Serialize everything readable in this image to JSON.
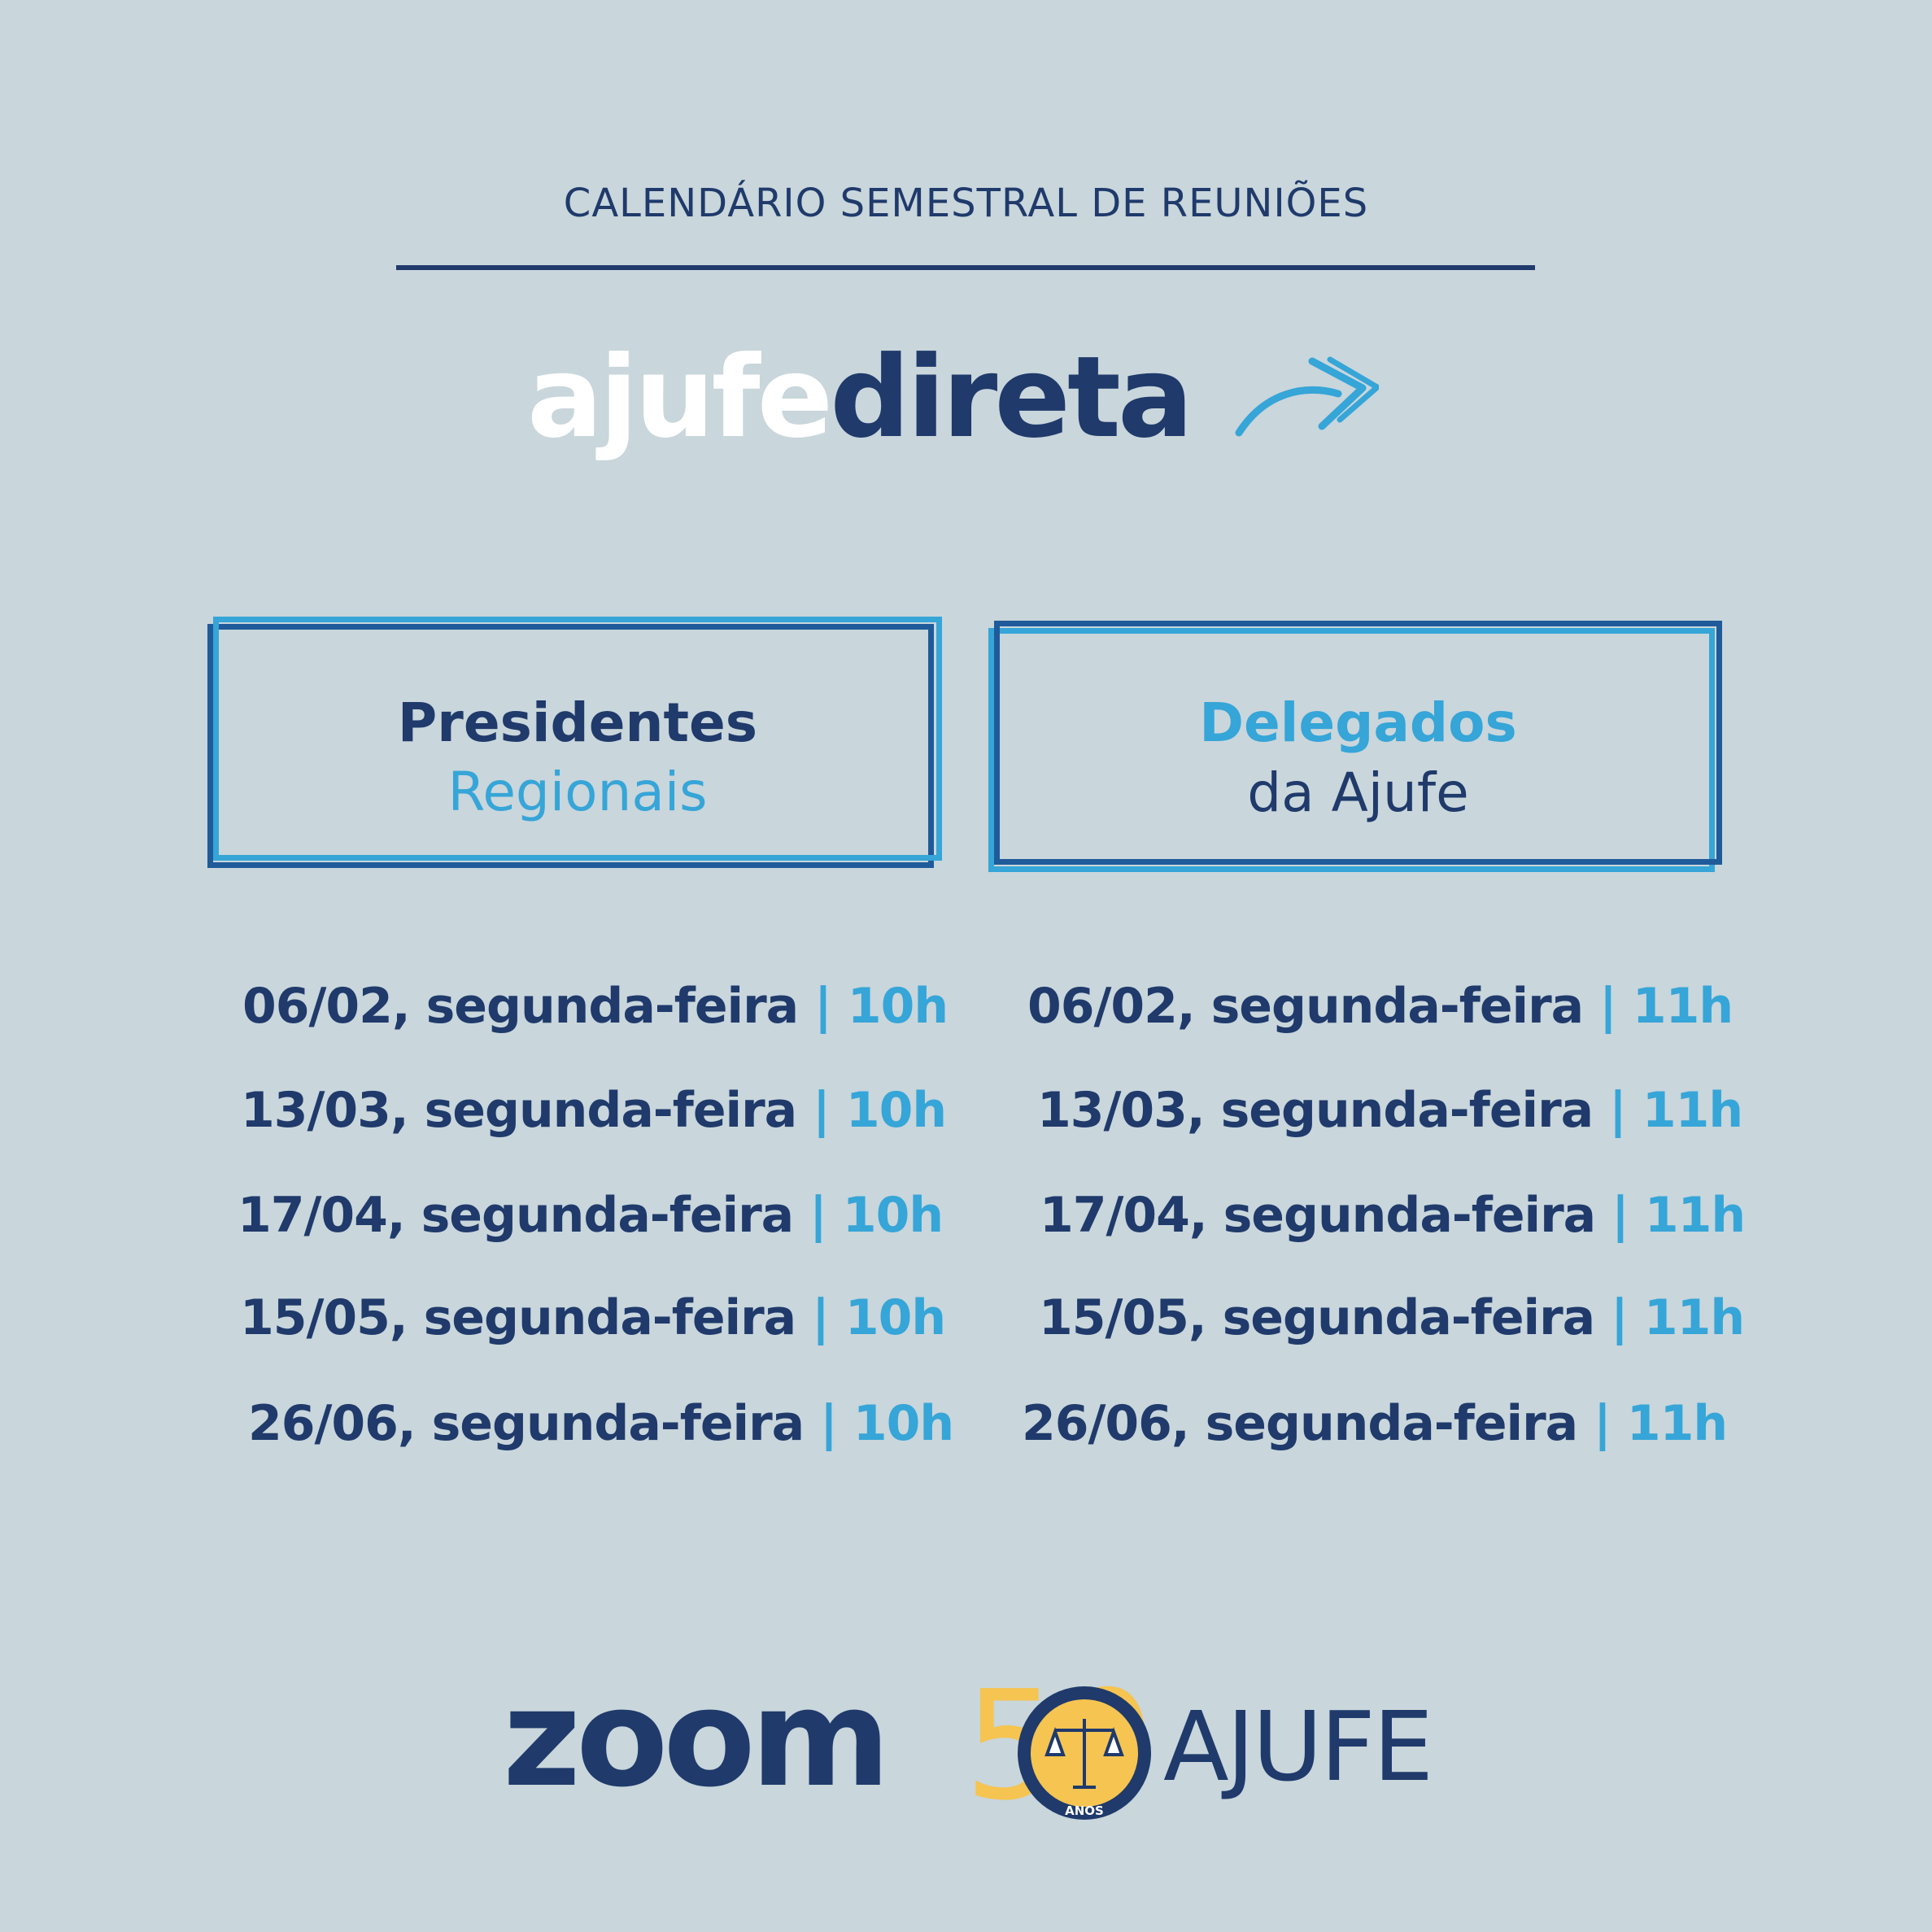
{
  "header": {
    "kicker": "CALENDÁRIO SEMESTRAL DE REUNIÕES",
    "brand_light": "ajufe",
    "brand_dark": "direta"
  },
  "colors": {
    "background": "#c9d6db",
    "navy": "#1f3a6b",
    "light_blue": "#36a5d8",
    "gold": "#f5c451",
    "white": "#ffffff"
  },
  "columns": [
    {
      "title": "Presidentes",
      "subtitle": "Regionais",
      "rows": [
        {
          "date": "06/02, segunda-feira",
          "time": "| 10h"
        },
        {
          "date": "13/03, segunda-feira",
          "time": "| 10h"
        },
        {
          "date": "17/04, segunda-feira",
          "time": "| 10h"
        },
        {
          "date": "15/05, segunda-feira",
          "time": "| 10h"
        },
        {
          "date": "26/06, segunda-feira",
          "time": "| 10h"
        }
      ]
    },
    {
      "title": "Delegados",
      "subtitle": "da Ajufe",
      "rows": [
        {
          "date": "06/02, segunda-feira",
          "time": "| 11h"
        },
        {
          "date": "13/03, segunda-feira",
          "time": "| 11h"
        },
        {
          "date": "17/04, segunda-feira",
          "time": "| 11h"
        },
        {
          "date": "15/05, segunda-feira",
          "time": "| 11h"
        },
        {
          "date": "26/06, segunda-feira",
          "time": "| 11h"
        }
      ]
    }
  ],
  "footer": {
    "zoom_logo": "zoom",
    "ajufe_logo": "AJUFE",
    "anniversary_number": "50",
    "anniversary_label": "ANOS"
  },
  "icons": [
    "forward-arrow-icon",
    "scales-of-justice-icon"
  ]
}
